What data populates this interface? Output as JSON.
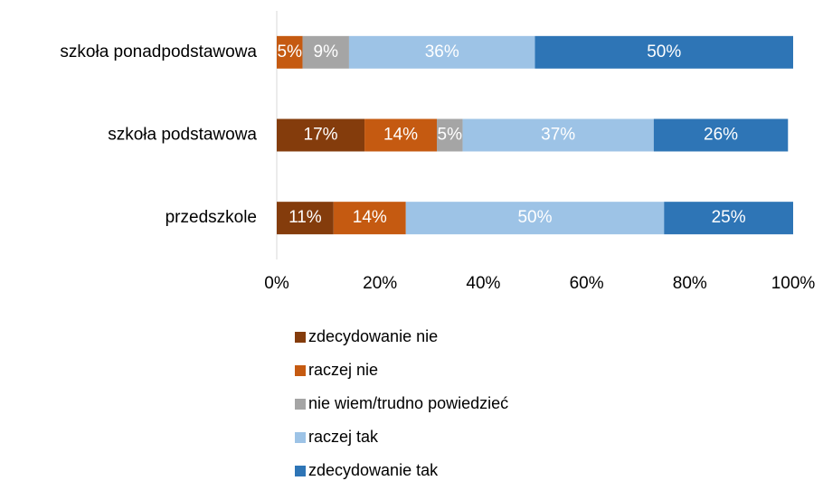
{
  "chart_data": {
    "type": "stacked-barh",
    "categories": [
      "szkoła ponadpodstawowa",
      "szkoła podstawowa",
      "przedszkole"
    ],
    "series": [
      {
        "name": "zdecydowanie nie",
        "color": "#843c0c",
        "values": [
          null,
          17,
          11
        ],
        "value_labels": [
          null,
          "17%",
          "11%"
        ]
      },
      {
        "name": "raczej nie",
        "color": "#c55a11",
        "values": [
          5,
          14,
          14
        ],
        "value_labels": [
          "5%",
          "14%",
          "14%"
        ]
      },
      {
        "name": "nie wiem/trudno powiedzieć",
        "color": "#a5a5a5",
        "values": [
          9,
          5,
          null
        ],
        "value_labels": [
          "9%",
          "5%",
          null
        ]
      },
      {
        "name": "raczej tak",
        "color": "#9dc3e6",
        "values": [
          36,
          37,
          50
        ],
        "value_labels": [
          "36%",
          "37%",
          "50%"
        ]
      },
      {
        "name": "zdecydowanie tak",
        "color": "#2e75b6",
        "values": [
          50,
          26,
          25
        ],
        "value_labels": [
          "50%",
          "26%",
          "25%"
        ]
      }
    ],
    "xlim": [
      0,
      100
    ],
    "xticks": [
      {
        "value": 0,
        "label": "0%"
      },
      {
        "value": 20,
        "label": "20%"
      },
      {
        "value": 40,
        "label": "40%"
      },
      {
        "value": 60,
        "label": "60%"
      },
      {
        "value": 80,
        "label": "80%"
      },
      {
        "value": 100,
        "label": "100%"
      }
    ],
    "legend": "bottom"
  }
}
